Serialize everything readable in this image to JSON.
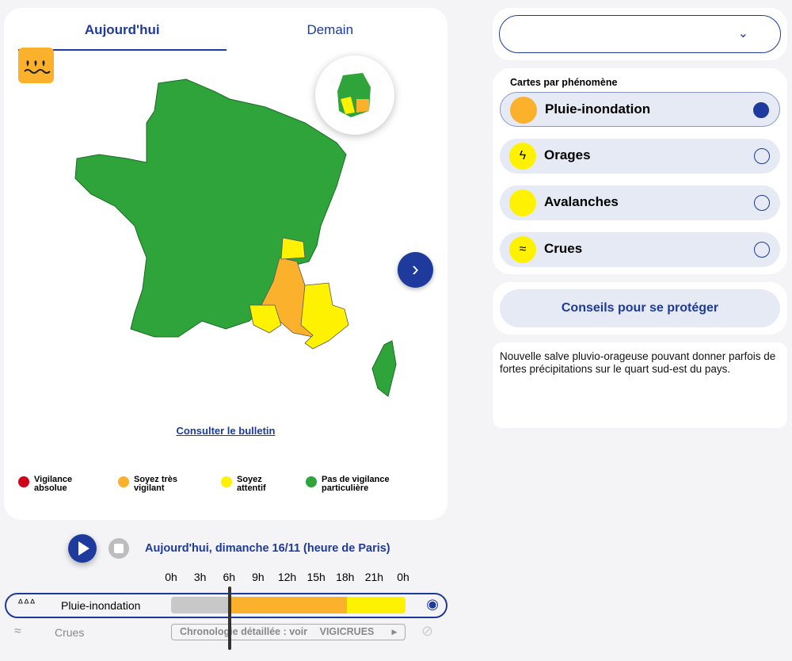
{
  "tabs": [
    {
      "label": "Aujourd'hui",
      "active": true
    },
    {
      "label": "Demain",
      "active": false
    }
  ],
  "map": {
    "bulletin_link": "Consulter le bulletin",
    "next_icon": "chevron-right-icon",
    "phenomenon_icon": "rain-flood-icon"
  },
  "legend": [
    {
      "label": "Vigilance absolue",
      "color": "#d0021b"
    },
    {
      "label": "Soyez très vigilant",
      "color": "#fbb12c"
    },
    {
      "label": "Soyez attentif",
      "color": "#fff200"
    },
    {
      "label": "Pas de vigilance particulière",
      "color": "#2ea43a"
    }
  ],
  "select": {
    "value": "",
    "icon": "chevron-down-icon"
  },
  "phenomena": {
    "title": "Cartes par phénomène",
    "items": [
      {
        "label": "Pluie-inondation",
        "color": "#fbb12c",
        "selected": true
      },
      {
        "label": "Orages",
        "color": "#fff200",
        "selected": false
      },
      {
        "label": "Avalanches",
        "color": "#fff200",
        "selected": false
      },
      {
        "label": "Crues",
        "color": "#fff200",
        "selected": false
      }
    ]
  },
  "advice_button": "Conseils pour se protéger",
  "description": "Nouvelle salve pluvio-orageuse pouvant donner parfois de fortes précipitations sur le quart sud-est du pays.",
  "timeline": {
    "date_label": "Aujourd'hui, dimanche 16/11 (heure de Paris)",
    "ticks": [
      "0h",
      "3h",
      "6h",
      "9h",
      "12h",
      "15h",
      "18h",
      "21h",
      "0h"
    ],
    "current_hour": 6,
    "rows": [
      {
        "label": "Pluie-inondation",
        "segments": [
          {
            "from": 0,
            "to": 6,
            "color": "#c8c8c8"
          },
          {
            "from": 6,
            "to": 18,
            "color": "#fbb12c"
          },
          {
            "from": 18,
            "to": 24,
            "color": "#fff200"
          }
        ]
      },
      {
        "label": "Crues",
        "link": "Chronologie détaillée : voir",
        "brand": "VIGICRUES"
      }
    ]
  }
}
